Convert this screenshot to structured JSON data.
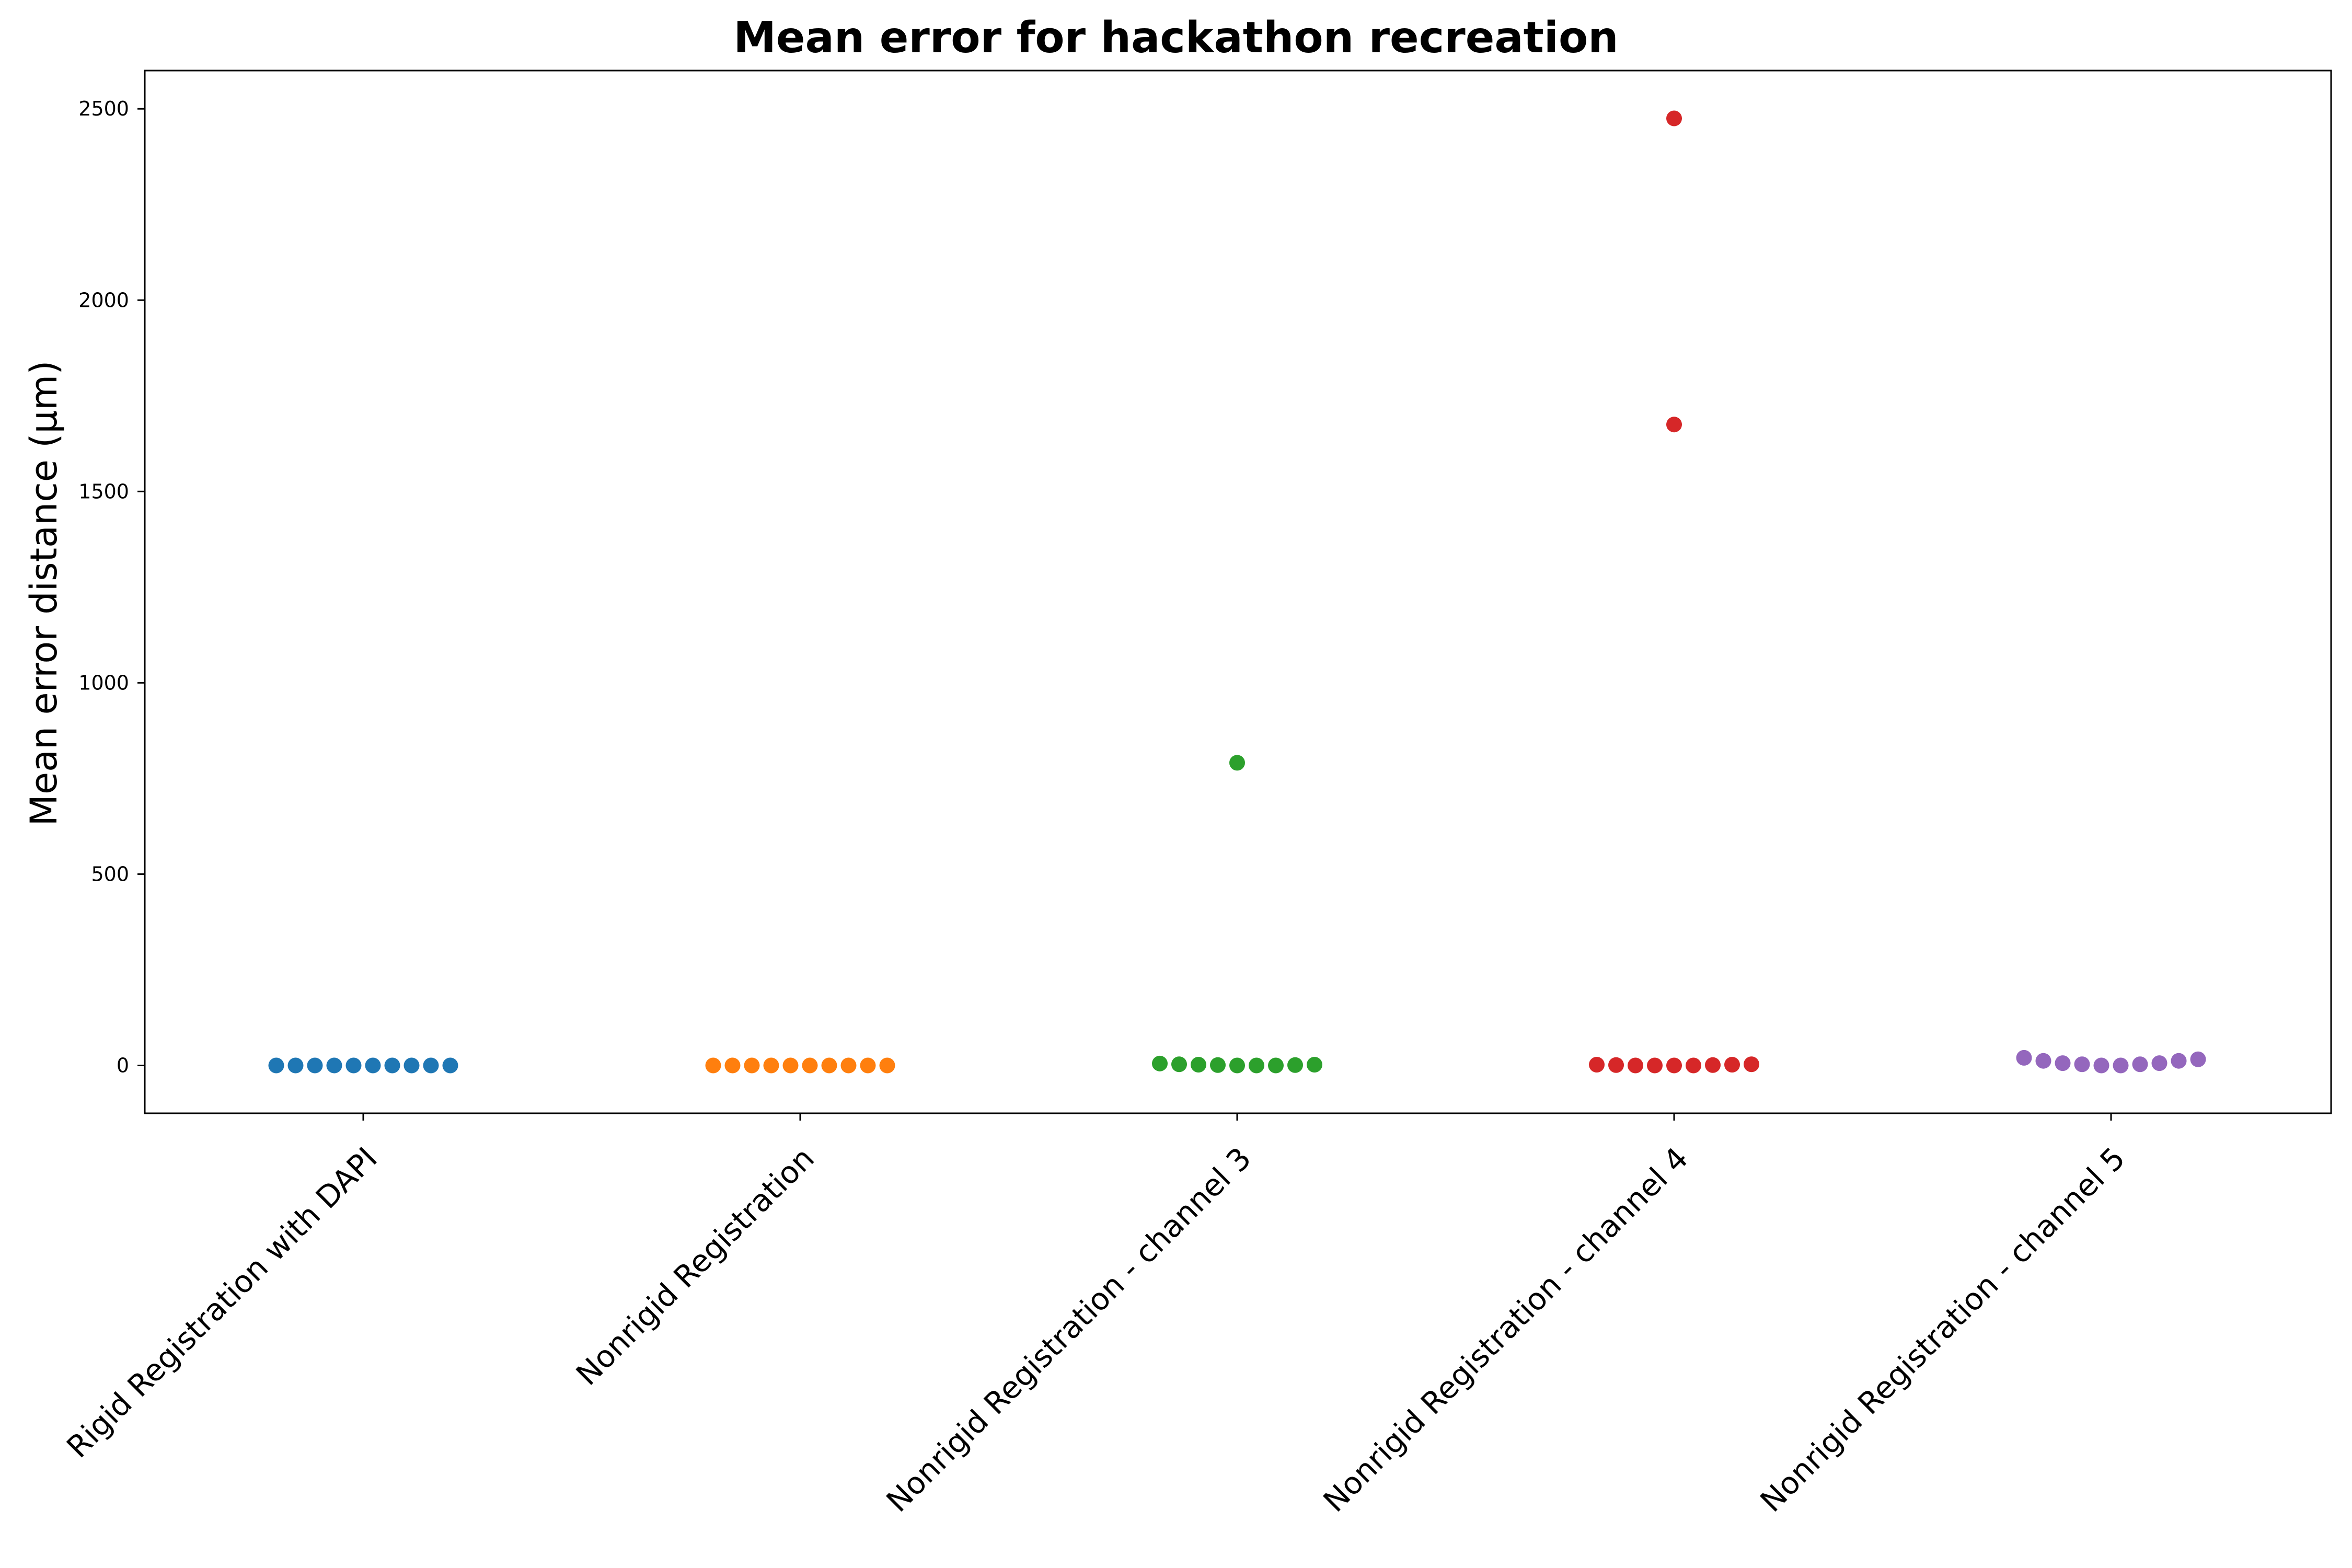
{
  "chart_data": {
    "type": "scatter",
    "title": "Mean error for hackathon recreation",
    "xlabel": "",
    "ylabel": "Mean error distance (µm)",
    "categories": [
      "Rigid Registration with DAPI",
      "Nonrigid Registration",
      "Nonrigid Registration - channel 3",
      "Nonrigid Registration - channel 4",
      "Nonrigid Registration - channel 5"
    ],
    "yticks": [
      0,
      500,
      1000,
      1500,
      2000,
      2500
    ],
    "ylim": [
      -125,
      2600
    ],
    "grid": false,
    "legend": "none",
    "series": [
      {
        "color": "#1f77b4",
        "values": [
          0,
          0,
          0,
          0,
          0,
          0,
          0,
          0,
          0,
          0
        ]
      },
      {
        "color": "#ff7f0e",
        "values": [
          0,
          0,
          0,
          0,
          0,
          0,
          0,
          0,
          0,
          0
        ]
      },
      {
        "color": "#2ca02c",
        "values": [
          5,
          3,
          2,
          1,
          0,
          0,
          0,
          1,
          2,
          791
        ]
      },
      {
        "color": "#d62728",
        "values": [
          2,
          1,
          0,
          0,
          0,
          0,
          1,
          2,
          3,
          1675,
          2475
        ]
      },
      {
        "color": "#9467bd",
        "values": [
          20,
          12,
          6,
          3,
          0,
          0,
          3,
          6,
          12,
          16
        ]
      }
    ]
  }
}
